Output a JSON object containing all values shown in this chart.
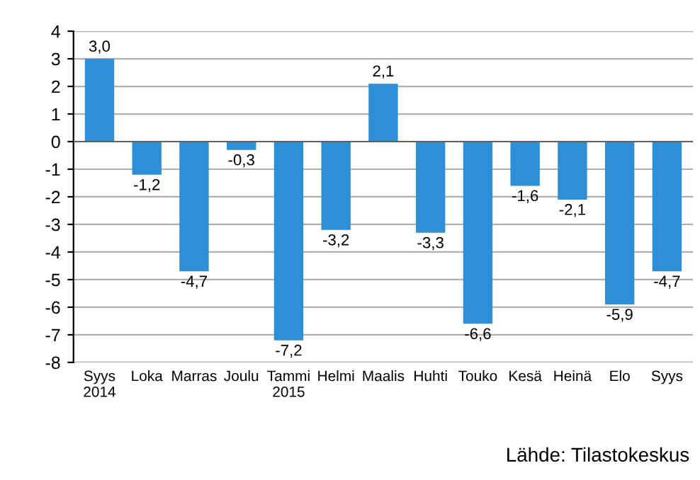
{
  "chart_data": {
    "type": "bar",
    "categories": [
      "Syys\n2014",
      "Loka",
      "Marras",
      "Joulu",
      "Tammi\n2015",
      "Helmi",
      "Maalis",
      "Huhti",
      "Touko",
      "Kesä",
      "Heinä",
      "Elo",
      "Syys"
    ],
    "values": [
      3.0,
      -1.2,
      -4.7,
      -0.3,
      -7.2,
      -3.2,
      2.1,
      -3.3,
      -6.6,
      -1.6,
      -2.1,
      -5.9,
      -4.7
    ],
    "value_labels": [
      "3,0",
      "-1,2",
      "-4,7",
      "-0,3",
      "-7,2",
      "-3,2",
      "2,1",
      "-3,3",
      "-6,6",
      "-1,6",
      "-2,1",
      "-5,9",
      "-4,7"
    ],
    "color": "#2e8fd6",
    "ylim": [
      -8,
      4
    ],
    "yticks": [
      -8,
      -7,
      -6,
      -5,
      -4,
      -3,
      -2,
      -1,
      0,
      1,
      2,
      3,
      4
    ],
    "grid": "y",
    "annotations": [
      "Lähde: Tilastokeskus"
    ]
  }
}
